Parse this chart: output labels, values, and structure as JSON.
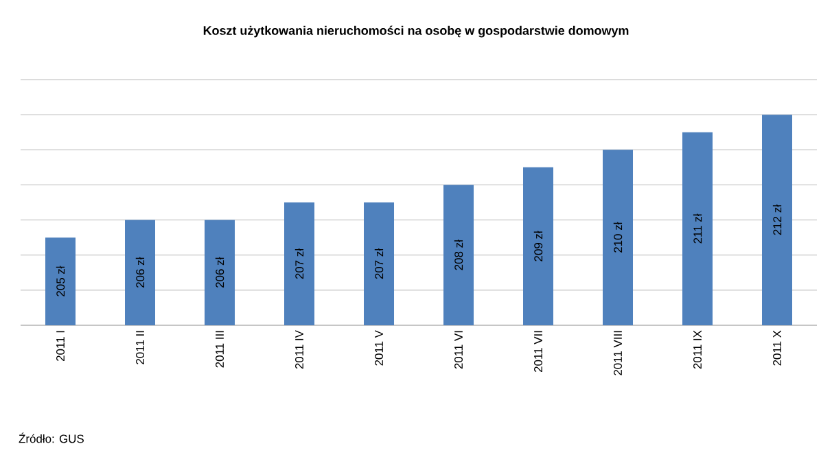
{
  "chart_data": {
    "type": "bar",
    "title": "Koszt  użytkowania nieruchomości  na osobę  w gospodarstwie  domowym",
    "categories": [
      "2011 I",
      "2011 II",
      "2011 III",
      "2011 IV",
      "2011 V",
      "2011 VI",
      "2011 VII",
      "2011 VIII",
      "2011 IX",
      "2011 X"
    ],
    "values": [
      205,
      206,
      206,
      207,
      207,
      208,
      209,
      210,
      211,
      212
    ],
    "value_labels": [
      "205 zł",
      "206 zł",
      "206 zł",
      "207 zł",
      "207 zł",
      "208 zł",
      "209 zł",
      "210 zł",
      "211 zł",
      "212 zł"
    ],
    "color": "#4f81bd",
    "ylim": [
      200,
      214
    ],
    "tick_labels": "x",
    "grid": "y",
    "annotations": [
      "Źródło: GUS"
    ]
  }
}
